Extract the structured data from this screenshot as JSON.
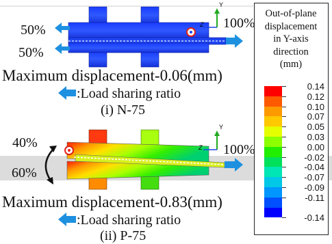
{
  "model_1": {
    "left_top_ratio": "50%",
    "left_bottom_ratio": "50%",
    "right_ratio": "100%",
    "max_displacement_text": "Maximum displacement-0.06(mm)",
    "legend_text": ":Load sharing ratio",
    "caption": "(i) N-75"
  },
  "model_2": {
    "left_top_ratio": "40%",
    "left_bottom_ratio": "60%",
    "right_ratio": "100%",
    "max_displacement_text": "Maximum displacement-0.83(mm)",
    "legend_text": ":Load sharing ratio",
    "caption": "(ii) P-75"
  },
  "axis": {
    "y_label": "Y",
    "z_label": "Z"
  },
  "colorbar": {
    "title_lines": [
      "Out-of-plane",
      "displacement",
      "in Y-axis",
      "direction",
      "(mm)"
    ],
    "values": [
      "0.14",
      "0.12",
      "0.10",
      "0.07",
      "0.05",
      "0.03",
      "0.00",
      "-0.02",
      "-0.04",
      "-0.07",
      "-0.09",
      "-0.11",
      "-0.14"
    ],
    "colors": [
      "#ff0000",
      "#ff5a00",
      "#ff9900",
      "#ffc800",
      "#e6ff00",
      "#8cff00",
      "#22ee00",
      "#00e05a",
      "#00e6b4",
      "#00c8e6",
      "#0096ff",
      "#0050ff",
      "#0000ff"
    ]
  },
  "colors": {
    "arrow": "#1e90e0",
    "model1_body": "#2244ee",
    "marker": "#e0201a"
  }
}
